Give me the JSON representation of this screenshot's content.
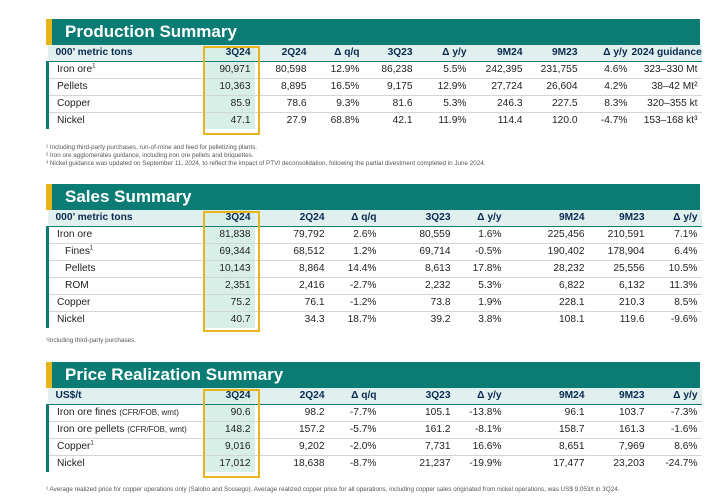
{
  "production": {
    "title": "Production Summary",
    "header": [
      "000’ metric tons",
      "3Q24",
      "2Q24",
      "Δ q/q",
      "3Q23",
      "Δ y/y",
      "9M24",
      "9M23",
      "Δ y/y",
      "2024 guidance"
    ],
    "rows": [
      {
        "label": "Iron ore",
        "sup": "1",
        "cells": [
          "90,971",
          "80,598",
          "12.9%",
          "86,238",
          "5.5%",
          "242,395",
          "231,755",
          "4.6%",
          "323–330 Mt"
        ]
      },
      {
        "label": "Pellets",
        "sup": "",
        "cells": [
          "10,363",
          "8,895",
          "16.5%",
          "9,175",
          "12.9%",
          "27,724",
          "26,604",
          "4.2%",
          "38–42 Mt²"
        ]
      },
      {
        "label": "Copper",
        "sup": "",
        "cells": [
          "85.9",
          "78.6",
          "9.3%",
          "81.6",
          "5.3%",
          "246.3",
          "227.5",
          "8.3%",
          "320–355 kt"
        ]
      },
      {
        "label": "Nickel",
        "sup": "",
        "cells": [
          "47.1",
          "27.9",
          "68.8%",
          "42.1",
          "11.9%",
          "114.4",
          "120.0",
          "-4.7%",
          "153–168 kt³"
        ]
      }
    ],
    "footnotes": [
      "¹ Including third-party purchases, run-of-mine and feed for pelletizing plants.",
      "² Iron ore agglomerates guidance, including iron ore pellets and briquettes.",
      "³ Nickel guidance was updated on September 11, 2024, to reflect the impact of PTVI deconsolidation, following the partial divestment completed in June 2024."
    ]
  },
  "sales": {
    "title": "Sales Summary",
    "header": [
      "000’ metric tons",
      "3Q24",
      "2Q24",
      "Δ q/q",
      "3Q23",
      "Δ y/y",
      "9M24",
      "9M23",
      "Δ y/y"
    ],
    "rows": [
      {
        "label": "Iron ore",
        "sup": "",
        "sub": false,
        "cells": [
          "81,838",
          "79,792",
          "2.6%",
          "80,559",
          "1.6%",
          "225,456",
          "210,591",
          "7.1%"
        ]
      },
      {
        "label": "Fines",
        "sup": "1",
        "sub": true,
        "cells": [
          "69,344",
          "68,512",
          "1.2%",
          "69,714",
          "-0.5%",
          "190,402",
          "178,904",
          "6.4%"
        ]
      },
      {
        "label": "Pellets",
        "sup": "",
        "sub": true,
        "cells": [
          "10,143",
          "8,864",
          "14.4%",
          "8,613",
          "17.8%",
          "28,232",
          "25,556",
          "10.5%"
        ]
      },
      {
        "label": "ROM",
        "sup": "",
        "sub": true,
        "cells": [
          "2,351",
          "2,416",
          "-2.7%",
          "2,232",
          "5.3%",
          "6,822",
          "6,132",
          "11.3%"
        ]
      },
      {
        "label": "Copper",
        "sup": "",
        "sub": false,
        "cells": [
          "75.2",
          "76.1",
          "-1.2%",
          "73.8",
          "1.9%",
          "228.1",
          "210.3",
          "8.5%"
        ]
      },
      {
        "label": "Nickel",
        "sup": "",
        "sub": false,
        "cells": [
          "40.7",
          "34.3",
          "18.7%",
          "39.2",
          "3.8%",
          "108.1",
          "119.6",
          "-9.6%"
        ]
      }
    ],
    "footnote": "¹Including third-party purchases."
  },
  "price": {
    "title": "Price Realization Summary",
    "header": [
      "US$/t",
      "3Q24",
      "2Q24",
      "Δ q/q",
      "3Q23",
      "Δ y/y",
      "9M24",
      "9M23",
      "Δ y/y"
    ],
    "rows": [
      {
        "label": "Iron ore fines",
        "small": "(CFR/FOB, wmt)",
        "sup": "",
        "cells": [
          "90.6",
          "98.2",
          "-7.7%",
          "105.1",
          "-13.8%",
          "96.1",
          "103.7",
          "-7.3%"
        ]
      },
      {
        "label": "Iron ore pellets",
        "small": "(CFR/FOB, wmt)",
        "sup": "",
        "cells": [
          "148.2",
          "157.2",
          "-5.7%",
          "161.2",
          "-8.1%",
          "158.7",
          "161.3",
          "-1.6%"
        ]
      },
      {
        "label": "Copper",
        "small": "",
        "sup": "1",
        "cells": [
          "9,016",
          "9,202",
          "-2.0%",
          "7,731",
          "16.6%",
          "8,651",
          "7,969",
          "8.6%"
        ]
      },
      {
        "label": "Nickel",
        "small": "",
        "sup": "",
        "cells": [
          "17,012",
          "18,638",
          "-8.7%",
          "21,237",
          "-19.9%",
          "17,477",
          "23,203",
          "-24.7%"
        ]
      }
    ],
    "footnote": "¹ Average realized price for copper operations only (Salobo and Sossego). Average realized copper price for all operations, including copper sales originated from nickel operations, was US$ 9,053/t in 3Q24."
  }
}
